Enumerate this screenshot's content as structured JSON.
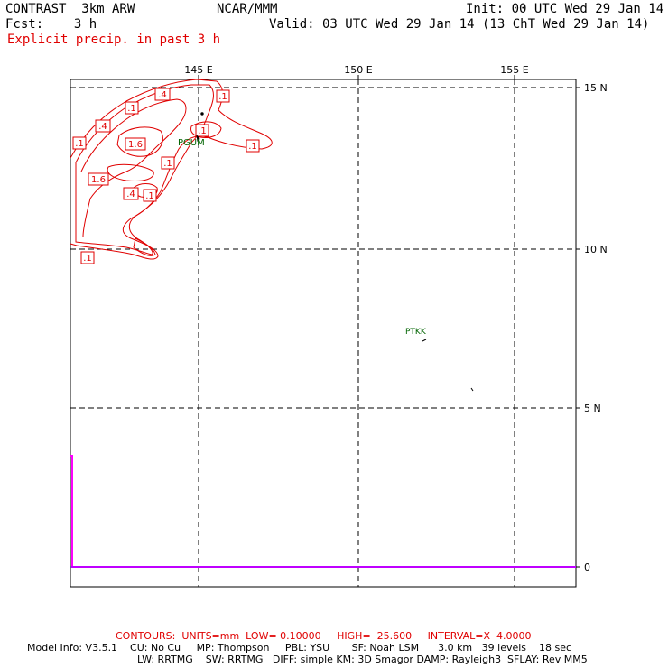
{
  "header": {
    "model": "CONTRAST  3km ARW",
    "center": "NCAR/MMM",
    "init": "Init: 00 UTC Wed 29 Jan 14",
    "fcst": "Fcst:    3 h",
    "valid": "Valid: 03 UTC Wed 29 Jan 14 (13 ChT Wed 29 Jan 14)",
    "field": "Explicit precip. in past 3 h"
  },
  "map": {
    "lon_labels": [
      "145 E",
      "150 E",
      "155 E"
    ],
    "lat_labels": [
      "15 N",
      "10 N",
      "5 N",
      "0"
    ],
    "stations": [
      "PGUM",
      "PTKK"
    ],
    "contour_labels": [
      ".4",
      ".1",
      ".4",
      ".1",
      ".1",
      "1.6",
      ".1",
      ".1",
      ".1",
      "1.6",
      ".4",
      ".1",
      ".1"
    ],
    "colors": {
      "precip": "#e00000",
      "station": "#006400",
      "profile": "#ff00ff"
    }
  },
  "footer": {
    "contours": "CONTOURS:  UNITS=mm  LOW= 0.10000     HIGH=  25.600     INTERVAL=X  4.0000",
    "info1": "Model Info: V3.5.1    CU: No Cu     MP: Thompson     PBL: YSU       SF: Noah LSM      3.0 km   39 levels    18 sec",
    "info2": "LW: RRTMG    SW: RRTMG   DIFF: simple KM: 3D Smagor DAMP: Rayleigh3  SFLAY: Rev MM5"
  }
}
